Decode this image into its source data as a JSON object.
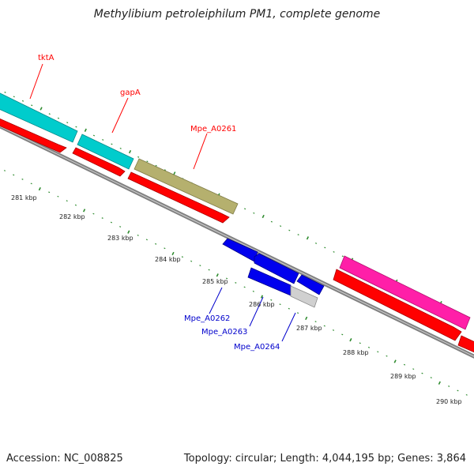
{
  "title": "Methylibium petroleiphilum PM1, complete genome",
  "footer": {
    "accession": "Accession: NC_008825",
    "summary": "Topology: circular; Length: 4,044,195 bp; Genes: 3,864"
  },
  "colors": {
    "cds_red": "#ff0000",
    "gene_cyan": "#00cccc",
    "gene_olive": "#b5b06e",
    "gene_magenta": "#ff1fa8",
    "gene_blue": "#0000ee",
    "gene_lightgray": "#d0d0d0",
    "backbone": "#808080",
    "tick_green": "#2e8b2e",
    "label_red": "#ff0000",
    "label_blue": "#0000cc"
  },
  "scale": {
    "unit": "kbp",
    "labels": [
      "281 kbp",
      "282 kbp",
      "283 kbp",
      "284 kbp",
      "285 kbp",
      "286 kbp",
      "287 kbp",
      "288 kbp",
      "289 kbp",
      "290 kbp"
    ]
  },
  "genes_top": [
    {
      "name": "tktA",
      "color": "cyan",
      "labeled": true
    },
    {
      "name": "gapA",
      "color": "cyan",
      "labeled": true
    },
    {
      "name": "Mpe_A0261",
      "color": "olive",
      "labeled": true
    },
    {
      "name": "",
      "color": "magenta",
      "labeled": false
    }
  ],
  "genes_bottom": [
    {
      "name": "Mpe_A0262",
      "color": "blue"
    },
    {
      "name": "Mpe_A0263",
      "color": "blue"
    },
    {
      "name": "Mpe_A0264",
      "color": "blue"
    }
  ]
}
